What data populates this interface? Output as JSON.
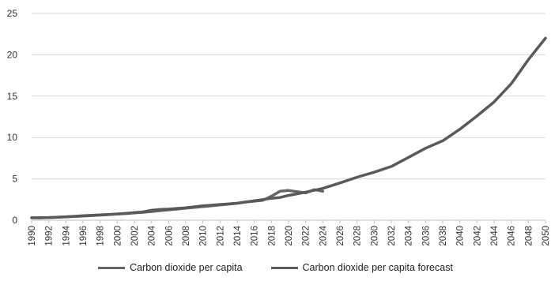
{
  "chart_data": {
    "type": "line",
    "title": "",
    "xlabel": "",
    "ylabel": "",
    "ylim": [
      0,
      25
    ],
    "y_ticks": [
      0,
      5,
      10,
      15,
      20,
      25
    ],
    "x_range": [
      1990,
      2050
    ],
    "x_tick_labels": [
      "1990",
      "1992",
      "1994",
      "1996",
      "1998",
      "2000",
      "2002",
      "2004",
      "2006",
      "2008",
      "2010",
      "2012",
      "2014",
      "2016",
      "2018",
      "2020",
      "2022",
      "2024",
      "2026",
      "2028",
      "2030",
      "2032",
      "2034",
      "2036",
      "2038",
      "2040",
      "2042",
      "2044",
      "2046",
      "2048",
      "2050"
    ],
    "grid": "horizontal",
    "legend_position": "bottom",
    "series": [
      {
        "name": "Carbon dioxide per capita",
        "color": "#666666",
        "x": [
          1990,
          1991,
          1992,
          1993,
          1994,
          1995,
          1996,
          1997,
          1998,
          1999,
          2000,
          2001,
          2002,
          2003,
          2004,
          2005,
          2006,
          2007,
          2008,
          2009,
          2010,
          2011,
          2012,
          2013,
          2014,
          2015,
          2016,
          2017,
          2018,
          2019,
          2020,
          2021,
          2022,
          2023,
          2024
        ],
        "values": [
          0.3,
          0.28,
          0.32,
          0.36,
          0.42,
          0.48,
          0.55,
          0.6,
          0.65,
          0.7,
          0.75,
          0.8,
          0.88,
          0.95,
          1.05,
          1.15,
          1.25,
          1.35,
          1.45,
          1.55,
          1.65,
          1.75,
          1.85,
          1.95,
          2.05,
          2.2,
          2.3,
          2.4,
          2.9,
          3.5,
          3.6,
          3.45,
          3.3,
          3.7,
          3.5
        ]
      },
      {
        "name": "Carbon dioxide per capita forecast",
        "color": "#5a5a5a",
        "x": [
          1990,
          1992,
          1994,
          1996,
          1998,
          2000,
          2002,
          2003,
          2004,
          2005,
          2006,
          2008,
          2010,
          2012,
          2014,
          2016,
          2018,
          2019,
          2020,
          2022,
          2024,
          2026,
          2028,
          2030,
          2032,
          2034,
          2036,
          2038,
          2040,
          2042,
          2044,
          2046,
          2048,
          2050
        ],
        "values": [
          0.3,
          0.32,
          0.4,
          0.5,
          0.62,
          0.75,
          0.92,
          1.0,
          1.2,
          1.3,
          1.35,
          1.5,
          1.75,
          1.9,
          2.05,
          2.35,
          2.65,
          2.75,
          3.0,
          3.4,
          3.85,
          4.5,
          5.2,
          5.8,
          6.5,
          7.6,
          8.7,
          9.6,
          11.0,
          12.6,
          14.3,
          16.5,
          19.4,
          22.0
        ]
      }
    ]
  }
}
